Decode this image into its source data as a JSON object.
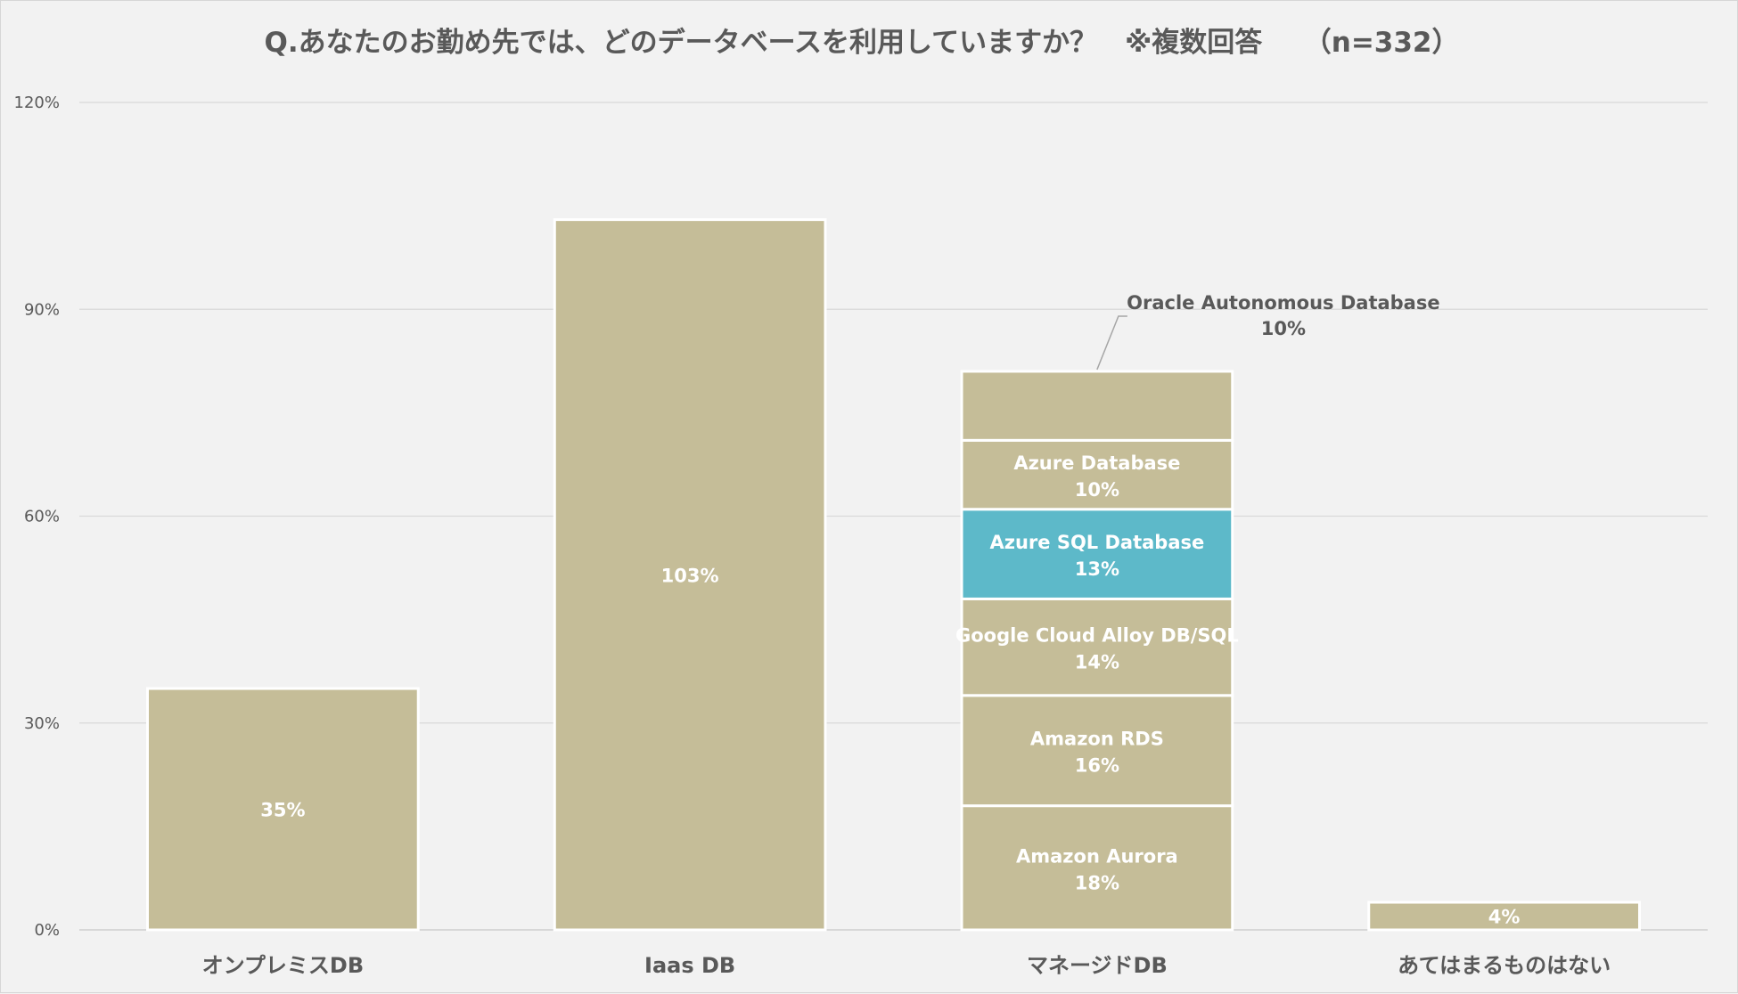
{
  "chart_data": {
    "type": "bar",
    "stacked": true,
    "title": "Q.あなたのお勤め先では、どのデータベースを利用していますか？　※複数回答　　（n=332）",
    "xlabel": "",
    "ylabel": "",
    "ylim": [
      0,
      120
    ],
    "yticks": [
      "0%",
      "30%",
      "60%",
      "90%",
      "120%"
    ],
    "ytick_values": [
      0,
      30,
      60,
      90,
      120
    ],
    "grid": true,
    "legend": "none",
    "colors": {
      "bar": "#c5bd98",
      "highlight": "#5db9c9",
      "grid": "#d9d9d9",
      "text": "#595959",
      "background": "#f2f2f2"
    },
    "categories": [
      "オンプレミスDB",
      "Iaas DB",
      "マネージドDB",
      "あてはまるものはない"
    ],
    "bars": [
      {
        "category": "オンプレミスDB",
        "segments": [
          {
            "name": "",
            "value": 35,
            "label": "35%"
          }
        ]
      },
      {
        "category": "Iaas DB",
        "segments": [
          {
            "name": "",
            "value": 103,
            "label": "103%"
          }
        ]
      },
      {
        "category": "マネージドDB",
        "segments": [
          {
            "name": "Amazon Aurora",
            "value": 18,
            "label": "18%"
          },
          {
            "name": "Amazon RDS",
            "value": 16,
            "label": "16%"
          },
          {
            "name": "Google Cloud Alloy DB/SQL",
            "value": 14,
            "label": "14%"
          },
          {
            "name": "Azure SQL Database",
            "value": 13,
            "label": "13%",
            "highlight": true
          },
          {
            "name": "Azure Database",
            "value": 10,
            "label": "10%"
          },
          {
            "name": "Oracle Autonomous Database",
            "value": 10,
            "label": "10%",
            "callout": true
          }
        ]
      },
      {
        "category": "あてはまるものはない",
        "segments": [
          {
            "name": "",
            "value": 4,
            "label": "4%"
          }
        ]
      }
    ]
  }
}
